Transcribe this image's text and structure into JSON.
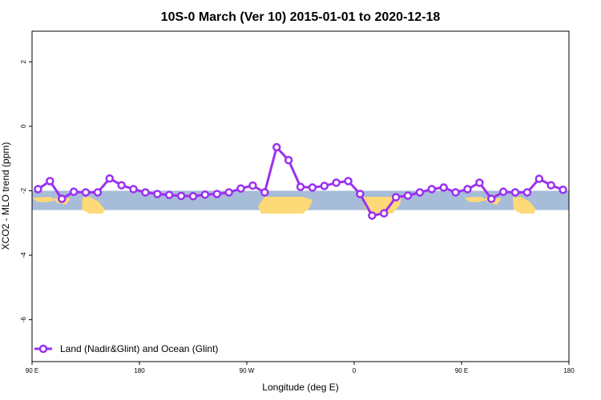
{
  "chart_data": {
    "type": "line",
    "title": "10S-0 March (Ver 10)   2015-01-01 to 2020-12-18",
    "xlabel": "Longitude (deg E)",
    "ylabel": "XCO2 - MLO trend (ppm)",
    "xlim": [
      90,
      540
    ],
    "ylim": [
      -7.3,
      2.95
    ],
    "x_ticks": [
      {
        "value": 90,
        "label": "90 E"
      },
      {
        "value": 180,
        "label": "180"
      },
      {
        "value": 270,
        "label": "90 W"
      },
      {
        "value": 360,
        "label": "0"
      },
      {
        "value": 450,
        "label": "90 E"
      },
      {
        "value": 540,
        "label": "180"
      }
    ],
    "y_ticks": [
      {
        "value": 2,
        "label": "2"
      },
      {
        "value": 0,
        "label": "0"
      },
      {
        "value": -2,
        "label": "-2"
      },
      {
        "value": -4,
        "label": "-4"
      },
      {
        "value": -6,
        "label": "-6"
      }
    ],
    "grid": false,
    "legend_position": "bottom-left",
    "map_band": {
      "ymin": -2.6,
      "ymax": -2.0,
      "ocean_color": "#a7bcd9",
      "land_color": "#fdd977"
    },
    "series": [
      {
        "name": "Land (Nadir&Glint) and Ocean (Glint)",
        "color": "#9b30f0",
        "x": [
          95,
          105,
          115,
          125,
          135,
          145,
          155,
          165,
          175,
          185,
          195,
          205,
          215,
          225,
          235,
          245,
          255,
          265,
          275,
          285,
          295,
          305,
          315,
          325,
          335,
          345,
          355,
          365,
          375,
          385,
          395,
          405,
          415,
          425,
          435,
          445,
          455,
          465,
          475,
          485,
          495,
          505,
          515,
          525,
          535
        ],
        "y": [
          -1.95,
          -1.7,
          -2.25,
          -2.03,
          -2.05,
          -2.05,
          -1.62,
          -1.83,
          -1.95,
          -2.05,
          -2.1,
          -2.13,
          -2.16,
          -2.17,
          -2.12,
          -2.1,
          -2.05,
          -1.93,
          -1.84,
          -2.05,
          -0.65,
          -1.05,
          -1.88,
          -1.9,
          -1.85,
          -1.75,
          -1.7,
          -2.1,
          -2.77,
          -2.7,
          -2.2,
          -2.15,
          -2.05,
          -1.95,
          -1.9,
          -2.05,
          -1.95,
          -1.75,
          -2.25,
          -2.03,
          -2.05,
          -2.05,
          -1.63,
          -1.83,
          -1.97
        ]
      }
    ]
  }
}
